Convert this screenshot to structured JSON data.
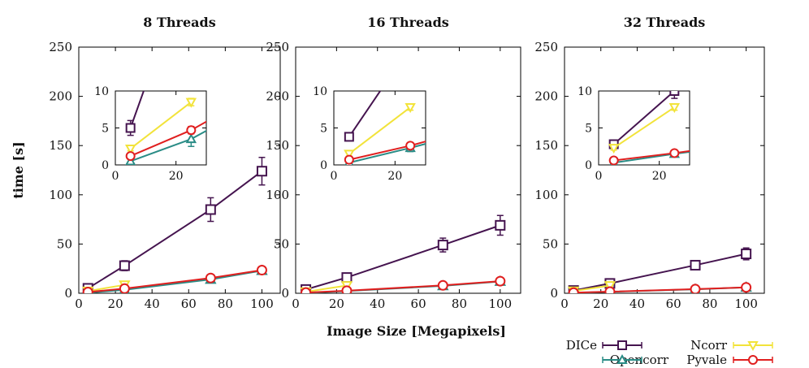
{
  "colors": {
    "DICe": "#45144f",
    "Opencorr": "#2a8c86",
    "Ncorr": "#f2e33a",
    "Pyvale": "#e01f1f"
  },
  "legend": {
    "entries": [
      "DICe",
      "Opencorr",
      "Ncorr",
      "Pyvale"
    ],
    "placement": "bottom-right"
  },
  "chart_data": [
    {
      "type": "line",
      "title": "8 Threads",
      "ylabel": "time [s]",
      "xlabel": "",
      "xlim": [
        0,
        110
      ],
      "ylim": [
        0,
        250
      ],
      "xticks": [
        0,
        20,
        40,
        60,
        80,
        100
      ],
      "yticks": [
        0,
        50,
        100,
        150,
        200,
        250
      ],
      "series": [
        {
          "name": "DICe",
          "marker": "square",
          "x": [
            5,
            25,
            72,
            100
          ],
          "y": [
            5,
            28,
            85,
            124
          ],
          "err": [
            1,
            5,
            12,
            14
          ]
        },
        {
          "name": "Opencorr",
          "marker": "triangle-up",
          "x": [
            5,
            25,
            72,
            100
          ],
          "y": [
            0.5,
            3.5,
            14,
            23
          ],
          "err": [
            0.3,
            1,
            2,
            2
          ]
        },
        {
          "name": "Ncorr",
          "marker": "triangle-down",
          "x": [
            5,
            25
          ],
          "y": [
            2.2,
            8.5
          ],
          "err": [
            0.3,
            0.5
          ]
        },
        {
          "name": "Pyvale",
          "marker": "circle",
          "x": [
            5,
            25,
            72,
            100
          ],
          "y": [
            1.2,
            4.7,
            15.5,
            23.5
          ],
          "err": [
            0.2,
            0.5,
            1.5,
            2
          ]
        }
      ],
      "inset": {
        "xlim": [
          0,
          30
        ],
        "ylim": [
          0,
          10
        ],
        "xticks": [
          0,
          20
        ],
        "yticks": [
          0,
          5,
          10
        ]
      }
    },
    {
      "type": "line",
      "title": "16 Threads",
      "ylabel": "",
      "xlabel": "Image Size [Megapixels]",
      "xlim": [
        0,
        110
      ],
      "ylim": [
        0,
        250
      ],
      "xticks": [
        0,
        20,
        40,
        60,
        80,
        100
      ],
      "yticks": [
        0,
        50,
        100,
        150,
        200,
        250
      ],
      "series": [
        {
          "name": "DICe",
          "marker": "square",
          "x": [
            5,
            25,
            72,
            100
          ],
          "y": [
            3.8,
            16,
            49,
            69
          ],
          "err": [
            0.5,
            2,
            7,
            10
          ]
        },
        {
          "name": "Opencorr",
          "marker": "triangle-up",
          "x": [
            5,
            25,
            72,
            100
          ],
          "y": [
            0.3,
            2.3,
            7.5,
            12
          ],
          "err": [
            0.2,
            0.5,
            1,
            1.5
          ]
        },
        {
          "name": "Ncorr",
          "marker": "triangle-down",
          "x": [
            5,
            25
          ],
          "y": [
            1.5,
            7.8
          ],
          "err": [
            0.3,
            0.4
          ]
        },
        {
          "name": "Pyvale",
          "marker": "circle",
          "x": [
            5,
            25,
            72,
            100
          ],
          "y": [
            0.7,
            2.6,
            8,
            12.3
          ],
          "err": [
            0.2,
            0.3,
            1,
            1.5
          ]
        }
      ],
      "inset": {
        "xlim": [
          0,
          30
        ],
        "ylim": [
          0,
          10
        ],
        "xticks": [
          0,
          20
        ],
        "yticks": [
          0,
          5,
          10
        ]
      }
    },
    {
      "type": "line",
      "title": "32 Threads",
      "ylabel": "",
      "xlabel": "",
      "xlim": [
        0,
        110
      ],
      "ylim": [
        0,
        250
      ],
      "xticks": [
        0,
        20,
        40,
        60,
        80,
        100
      ],
      "yticks": [
        0,
        50,
        100,
        150,
        200,
        250
      ],
      "series": [
        {
          "name": "DICe",
          "marker": "square",
          "x": [
            5,
            25,
            72,
            100
          ],
          "y": [
            2.8,
            10,
            28.5,
            40
          ],
          "err": [
            0.3,
            1,
            4,
            6
          ]
        },
        {
          "name": "Opencorr",
          "marker": "triangle-up",
          "x": [
            5,
            25,
            72,
            100
          ],
          "y": [
            0.3,
            1.5,
            4,
            6
          ],
          "err": [
            0.2,
            0.3,
            0.6,
            0.8
          ]
        },
        {
          "name": "Ncorr",
          "marker": "triangle-down",
          "x": [
            5,
            25
          ],
          "y": [
            2.3,
            7.8
          ],
          "err": [
            0.3,
            0.4
          ]
        },
        {
          "name": "Pyvale",
          "marker": "circle",
          "x": [
            5,
            25,
            72,
            100
          ],
          "y": [
            0.6,
            1.6,
            4.2,
            6
          ],
          "err": [
            0.2,
            0.3,
            0.6,
            0.8
          ]
        }
      ],
      "inset": {
        "xlim": [
          0,
          30
        ],
        "ylim": [
          0,
          10
        ],
        "xticks": [
          0,
          20
        ],
        "yticks": [
          0,
          5,
          10
        ]
      }
    }
  ]
}
